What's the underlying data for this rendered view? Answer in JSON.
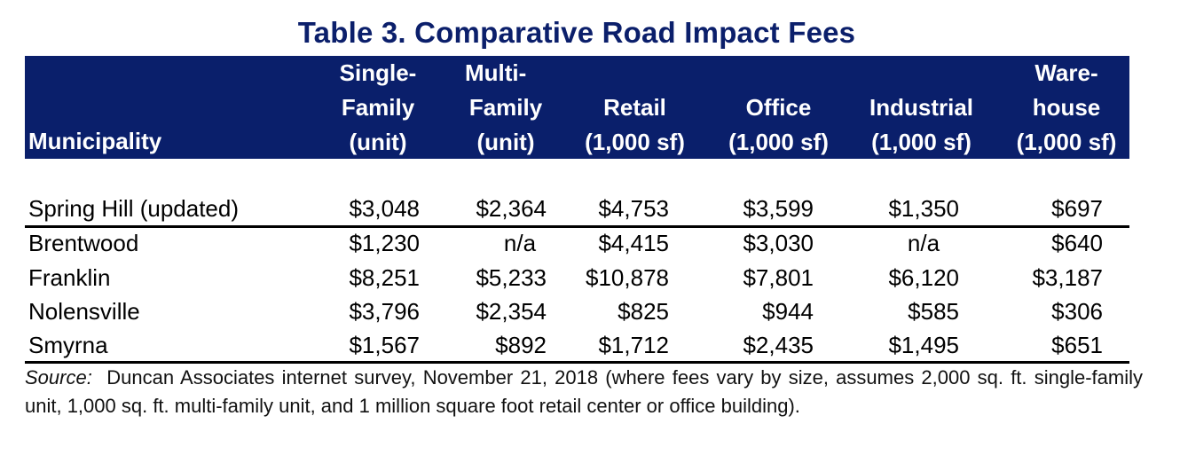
{
  "title": "Table 3.  Comparative Road Impact Fees",
  "header": {
    "municipality": "Municipality",
    "columns": [
      {
        "lines": [
          "Single-",
          "Family",
          "(unit)"
        ]
      },
      {
        "lines": [
          "Multi-",
          "Family",
          "(unit)"
        ]
      },
      {
        "lines": [
          "",
          "Retail",
          "(1,000 sf)"
        ]
      },
      {
        "lines": [
          "",
          "Office",
          "(1,000 sf)"
        ]
      },
      {
        "lines": [
          "",
          "Industrial",
          "(1,000 sf)"
        ]
      },
      {
        "lines": [
          "Ware-",
          "house",
          "(1,000 sf)"
        ]
      }
    ]
  },
  "rows": [
    {
      "municipality": "Spring Hill (updated)",
      "values": [
        "$3,048",
        "$2,364",
        "$4,753",
        "$3,599",
        "$1,350",
        "$697"
      ]
    },
    {
      "municipality": "Brentwood",
      "values": [
        "$1,230",
        "n/a",
        "$4,415",
        "$3,030",
        "n/a",
        "$640"
      ]
    },
    {
      "municipality": "Franklin",
      "values": [
        "$8,251",
        "$5,233",
        "$10,878",
        "$7,801",
        "$6,120",
        "$3,187"
      ]
    },
    {
      "municipality": "Nolensville",
      "values": [
        "$3,796",
        "$2,354",
        "$825",
        "$944",
        "$585",
        "$306"
      ]
    },
    {
      "municipality": "Smyrna",
      "values": [
        "$1,567",
        "$892",
        "$1,712",
        "$2,435",
        "$1,495",
        "$651"
      ]
    }
  ],
  "source": {
    "label": "Source:",
    "text": "Duncan Associates internet survey, November 21, 2018 (where fees vary by size, assumes 2,000 sq. ft. single-family unit, 1,000 sq. ft. multi-family unit, and 1 million square foot retail center or office building)."
  },
  "colors": {
    "title": "#0b1f6b",
    "header_band": "#0a1f6b",
    "header_text": "#ffffff"
  }
}
